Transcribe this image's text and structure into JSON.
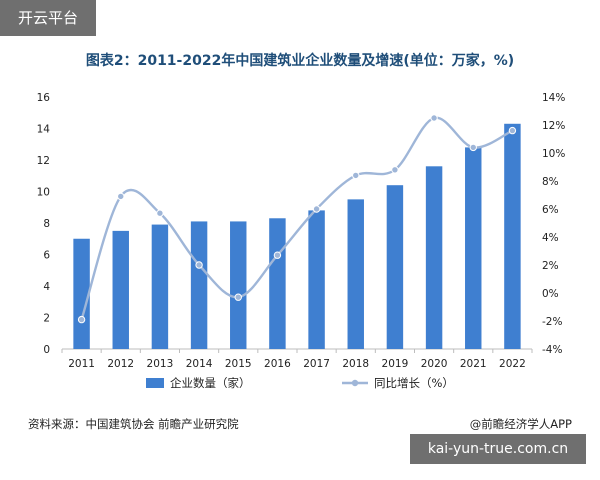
{
  "watermark": {
    "top_left": "开云平台",
    "bottom_right": "kai-yun-true.com.cn"
  },
  "footer": {
    "source": "资料来源：中国建筑协会 前瞻产业研究院",
    "credit": "@前瞻经济学人APP"
  },
  "colors": {
    "bar": "#3f7fd0",
    "line": "#9fb6d8",
    "title": "#1f4e79"
  },
  "chart_data": {
    "type": "bar",
    "title": "图表2：2011-2022年中国建筑业企业数量及增速(单位：万家，%)",
    "categories": [
      "2011",
      "2012",
      "2013",
      "2014",
      "2015",
      "2016",
      "2017",
      "2018",
      "2019",
      "2020",
      "2021",
      "2022"
    ],
    "series": [
      {
        "name": "企业数量（家）",
        "type": "bar",
        "axis": "left",
        "values": [
          7.0,
          7.5,
          7.9,
          8.1,
          8.1,
          8.3,
          8.8,
          9.5,
          10.4,
          11.6,
          12.8,
          14.3
        ]
      },
      {
        "name": "同比增长（%）",
        "type": "line",
        "smooth": true,
        "axis": "right",
        "values": [
          -1.9,
          6.9,
          5.7,
          2.0,
          -0.3,
          2.7,
          6.0,
          8.4,
          8.8,
          12.5,
          10.4,
          11.6
        ]
      }
    ],
    "y_left": {
      "min": 0,
      "max": 16,
      "ticks": [
        "0",
        "2",
        "4",
        "6",
        "8",
        "10",
        "12",
        "14",
        "16"
      ]
    },
    "y_right": {
      "min": -4,
      "max": 14,
      "ticks": [
        "-4%",
        "-2%",
        "0%",
        "2%",
        "4%",
        "6%",
        "8%",
        "10%",
        "12%",
        "14%"
      ]
    },
    "legend": "bottom",
    "grid": false
  }
}
